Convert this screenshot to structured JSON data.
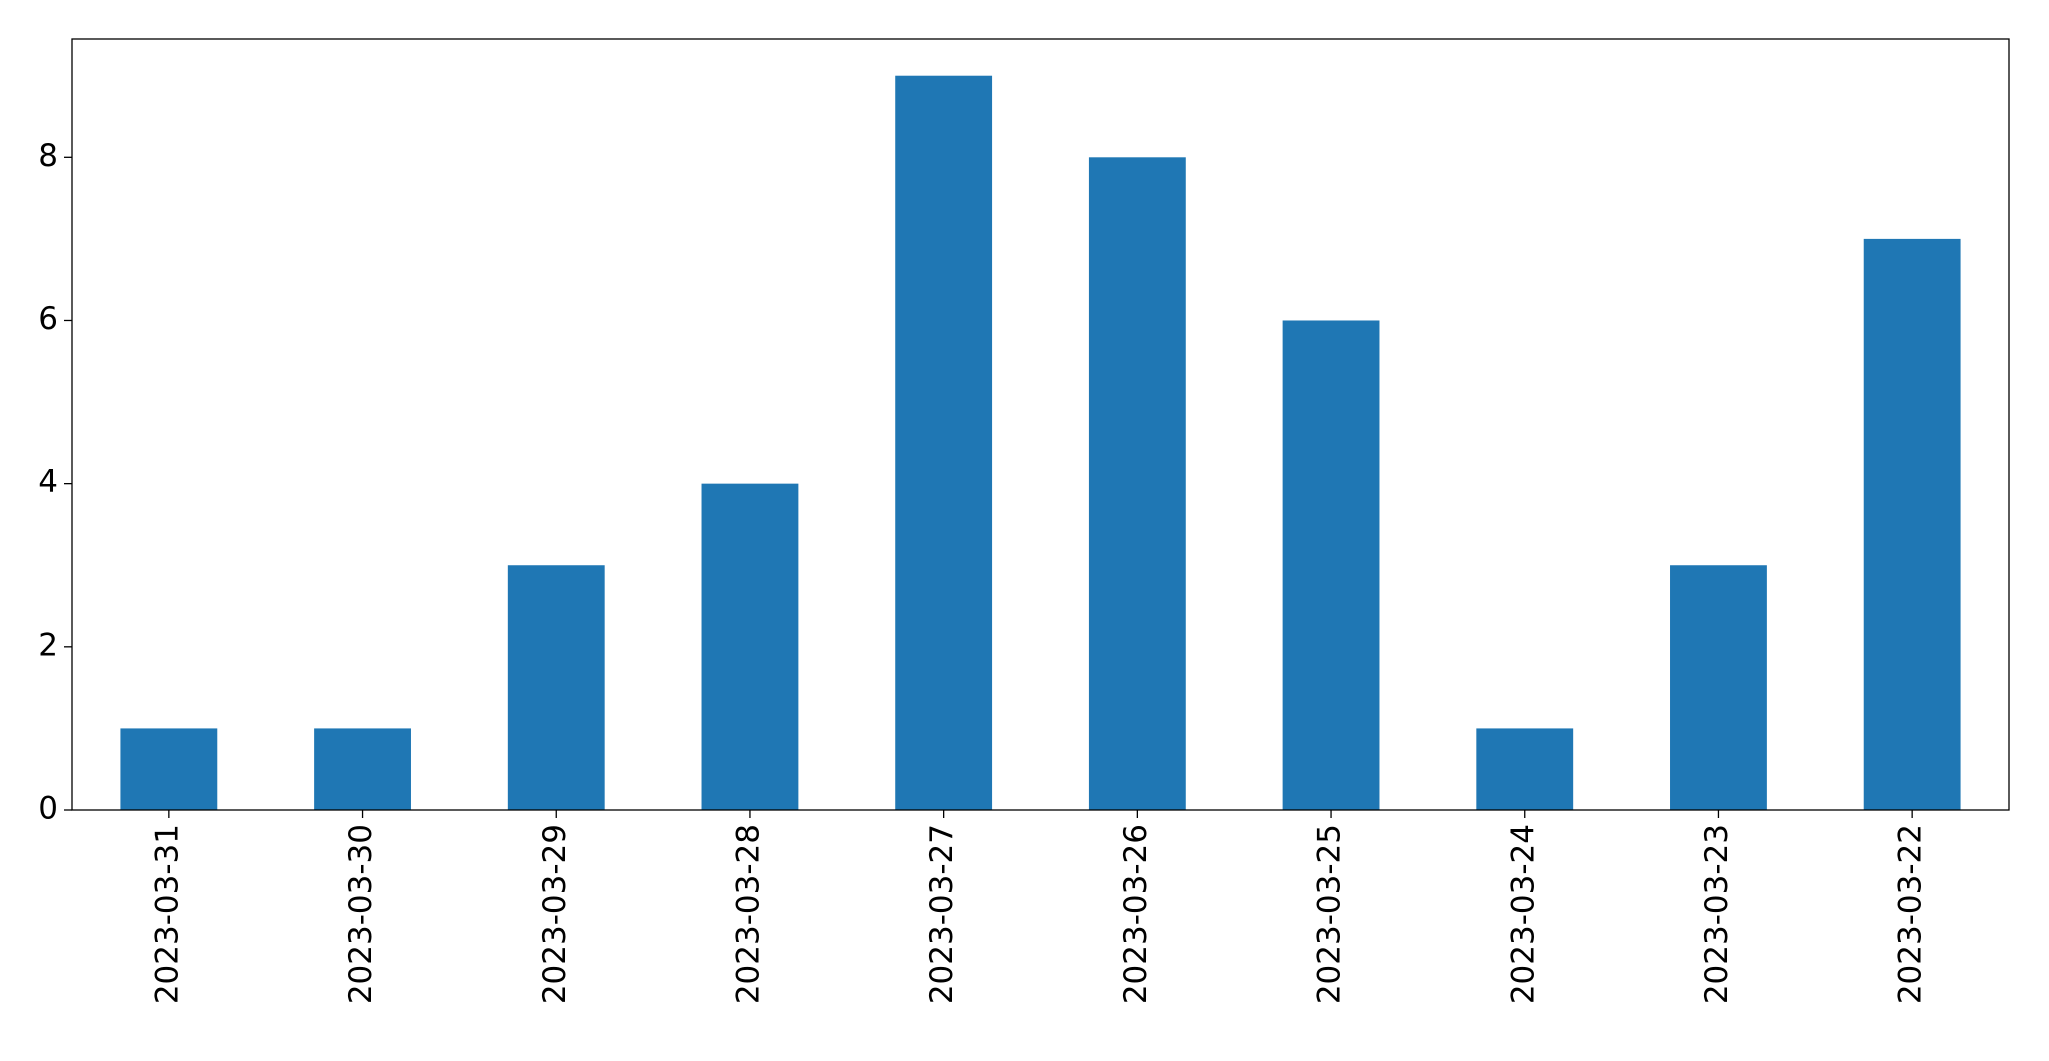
{
  "chart_data": {
    "type": "bar",
    "categories": [
      "2023-03-31",
      "2023-03-30",
      "2023-03-29",
      "2023-03-28",
      "2023-03-27",
      "2023-03-26",
      "2023-03-25",
      "2023-03-24",
      "2023-03-23",
      "2023-03-22"
    ],
    "values": [
      1,
      1,
      3,
      4,
      9,
      8,
      6,
      1,
      3,
      7
    ],
    "color": "#1f77b4",
    "ylim": [
      0,
      9.45
    ],
    "yticks": [
      0,
      2,
      4,
      6,
      8
    ],
    "grid": false
  }
}
